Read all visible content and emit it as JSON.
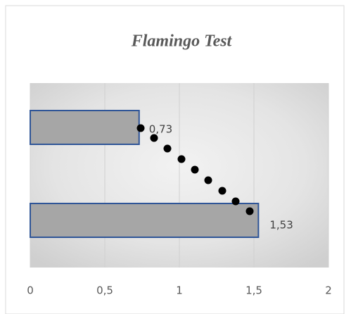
{
  "chart_data": {
    "type": "hbar",
    "title": "Flamingo Test",
    "categories": [
      null,
      null
    ],
    "values": [
      0.73,
      1.53
    ],
    "value_labels": [
      "0,73",
      "1,53"
    ],
    "color": "#a6a6a6",
    "edge_color": "#2f5597",
    "xlim": [
      0,
      2
    ],
    "xticks": [
      0,
      {
        "value": 0.5,
        "label": "0,5"
      },
      1,
      {
        "value": 1.5,
        "label": "1,5"
      },
      2
    ],
    "grid": true
  }
}
